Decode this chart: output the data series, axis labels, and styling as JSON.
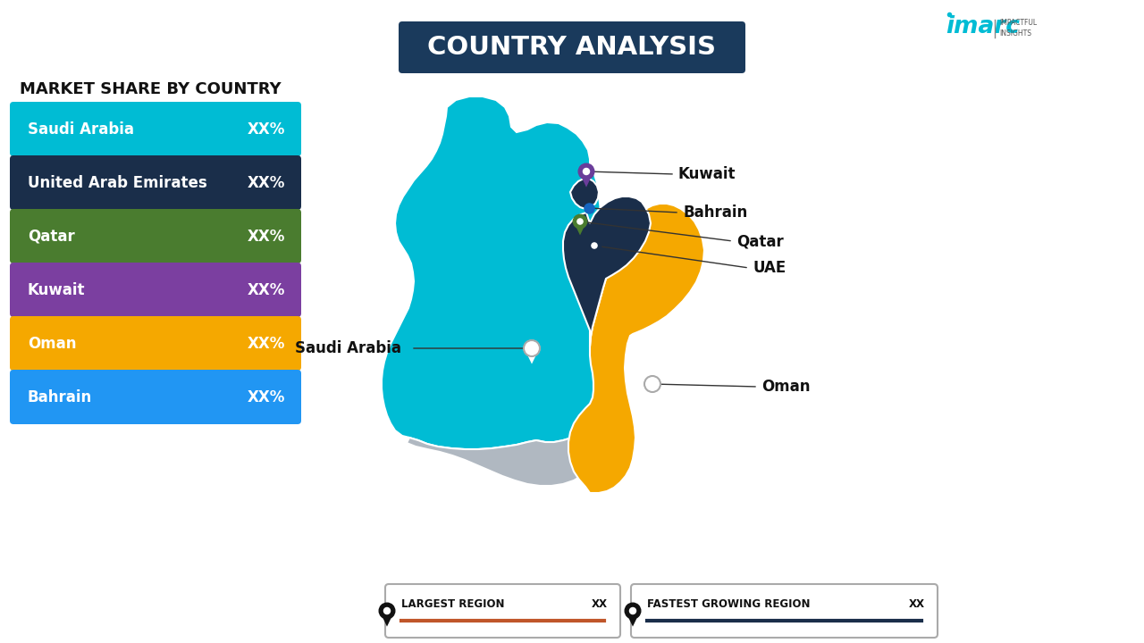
{
  "title": "COUNTRY ANALYSIS",
  "title_box_color": "#1a3a5c",
  "title_text_color": "#ffffff",
  "background_color": "#ffffff",
  "left_section_title": "MARKET SHARE BY COUNTRY",
  "bars": [
    {
      "label": "Saudi Arabia",
      "value": "XX%",
      "color": "#00bcd4"
    },
    {
      "label": "United Arab Emirates",
      "value": "XX%",
      "color": "#1a2e4a"
    },
    {
      "label": "Qatar",
      "value": "XX%",
      "color": "#4a7c2f"
    },
    {
      "label": "Kuwait",
      "value": "XX%",
      "color": "#7b3fa0"
    },
    {
      "label": "Oman",
      "value": "XX%",
      "color": "#f5a800"
    },
    {
      "label": "Bahrain",
      "value": "XX%",
      "color": "#2196f3"
    }
  ],
  "map_colors": {
    "saudi_arabia": "#00bcd4",
    "uae": "#1a2e4a",
    "qatar": "#1a2e4a",
    "oman": "#f5a800",
    "kuwait": "#00bcd4",
    "bahrain": "#00bcd4",
    "yemen": "#b0b8c1"
  },
  "legend_largest": "LARGEST REGION",
  "legend_largest_value": "XX",
  "legend_growing": "FASTEST GROWING REGION",
  "legend_growing_value": "XX",
  "imarc_color": "#00bcd4"
}
